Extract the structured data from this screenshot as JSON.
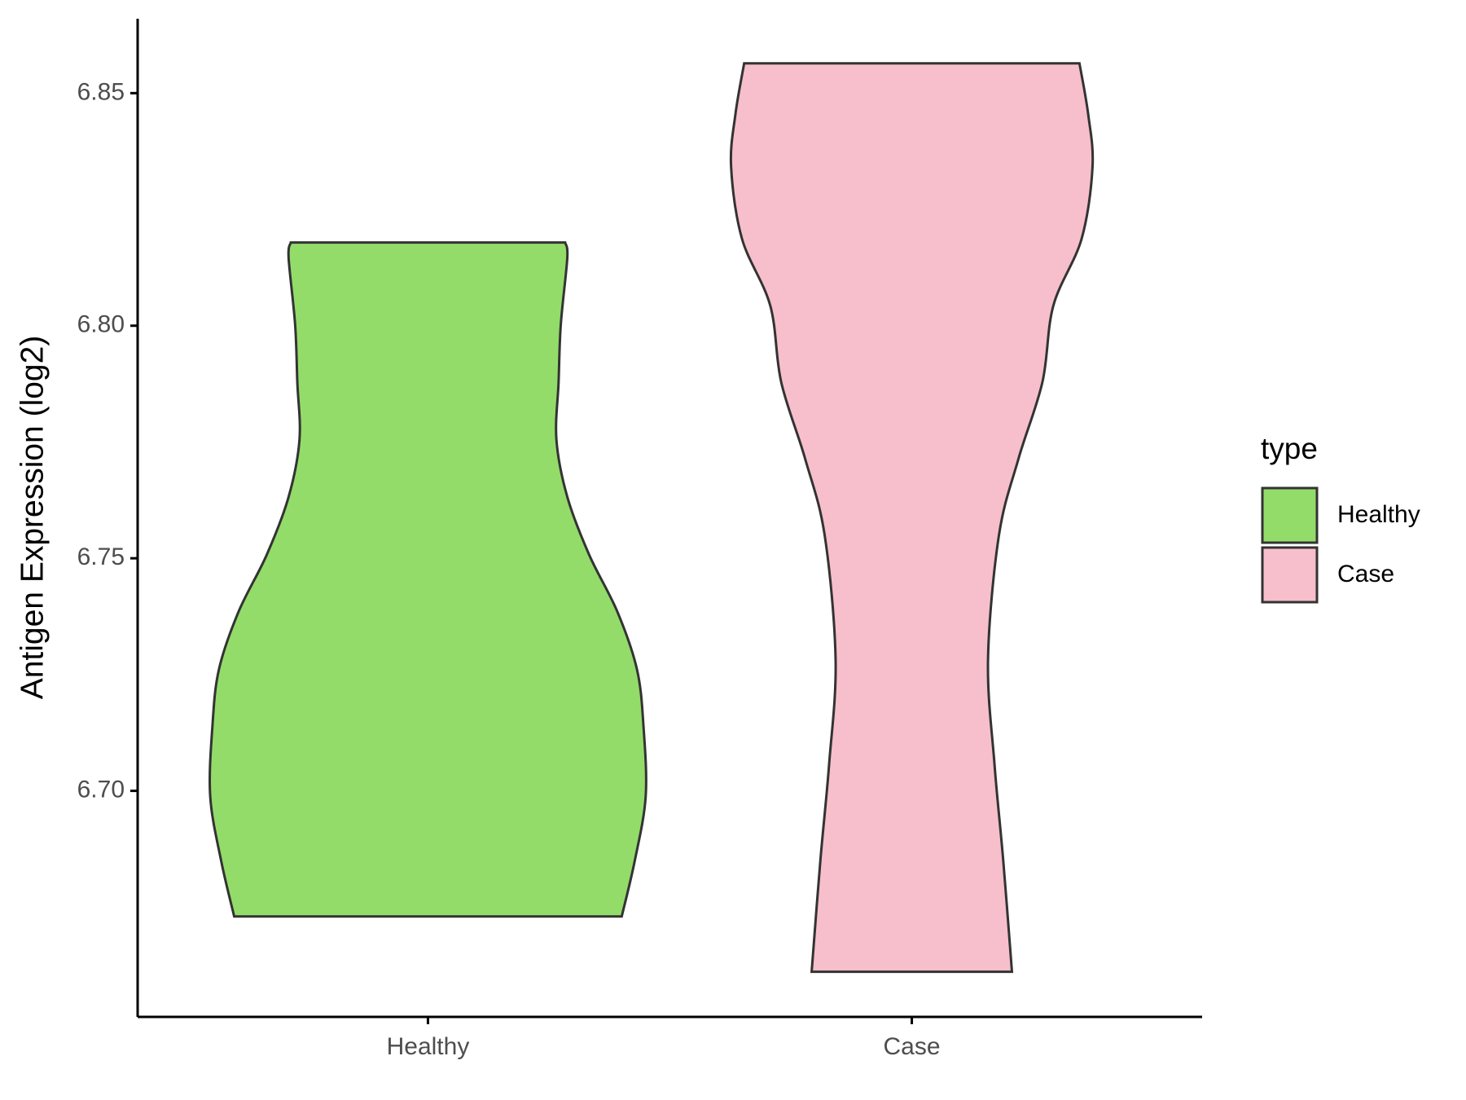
{
  "chart_data": {
    "type": "violin",
    "y_label": "Antigen Expression (log2)",
    "categories": [
      "Healthy",
      "Case"
    ],
    "legend_title": "type",
    "ylim": [
      6.6514,
      6.866
    ],
    "yticks": [
      {
        "value": 6.7,
        "label": "6.70"
      },
      6.75,
      {
        "value": 6.8,
        "label": "6.80"
      },
      6.85
    ],
    "series": [
      {
        "name": "Healthy",
        "color": "#93dc6a",
        "y": [
          6.8179,
          6.8146,
          6.8002,
          6.7879,
          6.7755,
          6.7632,
          6.7508,
          6.7385,
          6.7261,
          6.7138,
          6.6988,
          6.685,
          6.673
        ],
        "density": [
          0.63,
          0.64,
          0.61,
          0.6,
          0.59,
          0.64,
          0.74,
          0.87,
          0.96,
          0.99,
          1.0,
          0.95,
          0.89
        ]
      },
      {
        "name": "Case",
        "color": "#f7bfcb",
        "y": [
          6.8564,
          6.8455,
          6.8342,
          6.8187,
          6.8043,
          6.7879,
          6.7714,
          6.7549,
          6.7282,
          6.7056,
          6.685,
          6.6611
        ],
        "density": [
          0.77,
          0.81,
          0.83,
          0.78,
          0.65,
          0.6,
          0.49,
          0.4,
          0.35,
          0.38,
          0.42,
          0.46
        ]
      }
    ]
  }
}
